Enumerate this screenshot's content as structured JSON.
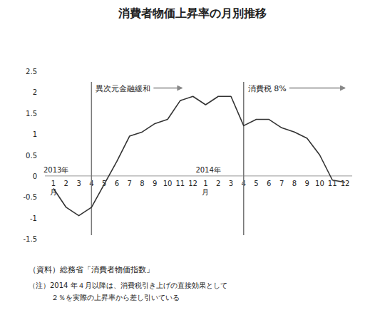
{
  "chart_data": {
    "type": "line",
    "title": "消費者物価上昇率の月別推移",
    "categories": [
      "1月",
      "2",
      "3",
      "4",
      "5",
      "6",
      "7",
      "8",
      "9",
      "10",
      "11",
      "12",
      "1月",
      "2",
      "3",
      "4",
      "5",
      "6",
      "7",
      "8",
      "9",
      "10",
      "11",
      "12"
    ],
    "values": [
      -0.3,
      -0.75,
      -0.95,
      -0.75,
      -0.2,
      0.35,
      0.95,
      1.05,
      1.25,
      1.35,
      1.8,
      1.9,
      1.7,
      1.9,
      1.9,
      1.2,
      1.35,
      1.35,
      1.15,
      1.05,
      0.9,
      0.5,
      -0.1,
      -0.15
    ],
    "color": "#333333",
    "ylim": [
      -1.5,
      2.5
    ],
    "yticks": [
      -1.5,
      -1,
      -0.5,
      0,
      0.5,
      1,
      1.5,
      2,
      2.5
    ],
    "grid": false,
    "year_labels": [
      {
        "label": "2013年",
        "x": 0
      },
      {
        "label": "2014年",
        "x": 12
      }
    ],
    "events": [
      {
        "label": "異次元金融緩和",
        "x": 3
      },
      {
        "label": "消費税 8%",
        "x": 15
      }
    ],
    "source": "（資料）総務省「消費者物価指数」",
    "notes": [
      "（注）2014 年４月以降は、消費税引き上げの直接効果として",
      "２％を実際の上昇率から差し引いている"
    ]
  }
}
